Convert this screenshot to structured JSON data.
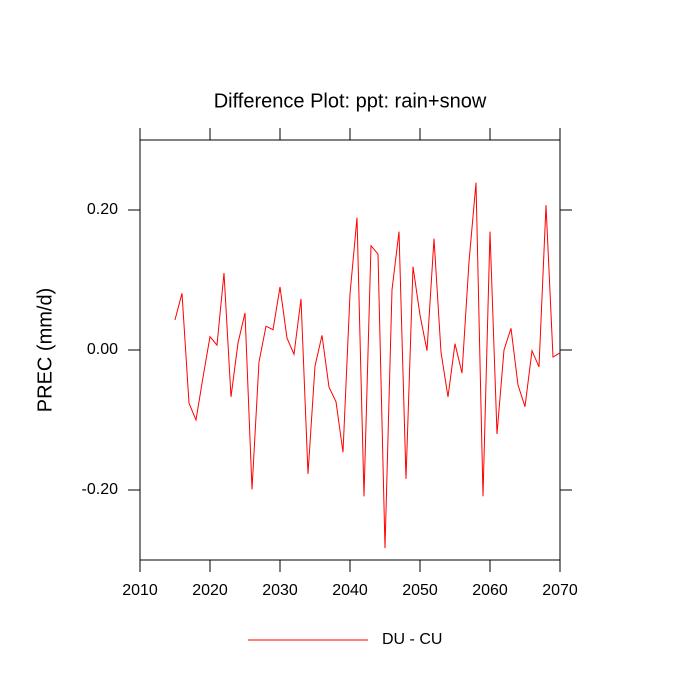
{
  "chart_data": {
    "type": "line",
    "title": "Difference Plot: ppt: rain+snow",
    "y_label": "PREC  (mm/d)",
    "x": [
      2015,
      2016,
      2017,
      2018,
      2019,
      2020,
      2021,
      2022,
      2023,
      2024,
      2025,
      2026,
      2027,
      2028,
      2029,
      2030,
      2031,
      2032,
      2033,
      2034,
      2035,
      2036,
      2037,
      2038,
      2039,
      2040,
      2041,
      2042,
      2043,
      2044,
      2045,
      2046,
      2047,
      2048,
      2049,
      2050,
      2051,
      2052,
      2053,
      2054,
      2055,
      2056,
      2057,
      2058,
      2059,
      2060,
      2061,
      2062,
      2063,
      2064,
      2065,
      2066,
      2067,
      2068,
      2069,
      2070
    ],
    "series": [
      {
        "name": "DU - CU",
        "color": "#ff0000",
        "values": [
          0.043,
          0.081,
          -0.076,
          -0.1,
          -0.039,
          0.019,
          0.007,
          0.11,
          -0.067,
          0.01,
          0.053,
          -0.199,
          -0.017,
          0.034,
          0.029,
          0.09,
          0.017,
          -0.006,
          0.073,
          -0.177,
          -0.023,
          0.021,
          -0.053,
          -0.074,
          -0.146,
          0.08,
          0.189,
          -0.209,
          0.149,
          0.137,
          -0.283,
          0.086,
          0.169,
          -0.184,
          0.119,
          0.05,
          -0.001,
          0.159,
          -0.003,
          -0.067,
          0.009,
          -0.033,
          0.126,
          0.239,
          -0.209,
          0.169,
          -0.12,
          0.0,
          0.031,
          -0.05,
          -0.081,
          -0.001,
          -0.024,
          0.207,
          -0.01,
          -0.004
        ]
      }
    ],
    "xlim": [
      2010,
      2070
    ],
    "xticks": [
      2010,
      2020,
      2030,
      2040,
      2050,
      2060,
      2070
    ],
    "ylim": [
      -0.3,
      0.3
    ],
    "yticks": [
      {
        "value": -0.2,
        "label": "-0.20"
      },
      {
        "value": 0,
        "label": "0.00"
      },
      {
        "value": 0.2,
        "label": "0.20"
      }
    ],
    "legend": "bottom"
  }
}
